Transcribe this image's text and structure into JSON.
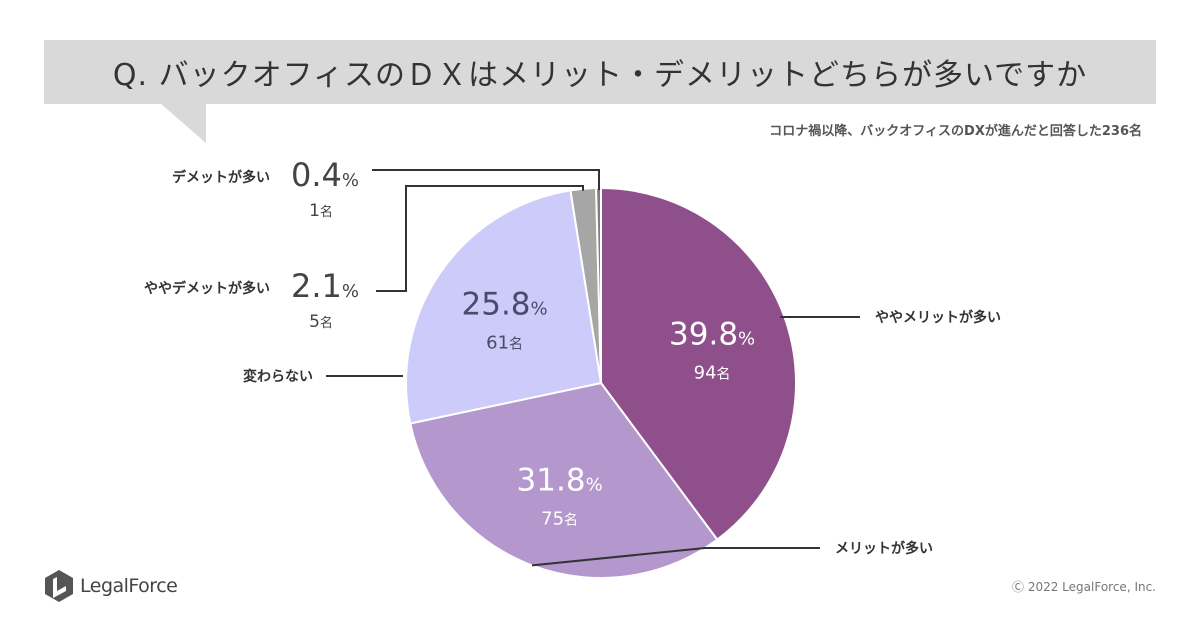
{
  "title": "Q. バックオフィスのＤＸはメリット・デメリットどちらが多いですか",
  "subtitle": "コロナ禍以降、バックオフィスのDXが進んだと回答した236名",
  "chart_data": {
    "type": "pie",
    "title": "Q. バックオフィスのＤＸはメリット・デメリットどちらが多いですか",
    "total_respondents": 236,
    "slices": [
      {
        "label": "ややメリットが多い",
        "percent": 39.8,
        "count": 94,
        "percent_text": "39.8",
        "count_text": "94",
        "color": "#8e4f8b"
      },
      {
        "label": "メリットが多い",
        "percent": 31.8,
        "count": 75,
        "percent_text": "31.8",
        "count_text": "75",
        "color": "#b497cc"
      },
      {
        "label": "変わらない",
        "percent": 25.8,
        "count": 61,
        "percent_text": "25.8",
        "count_text": "61",
        "color": "#cccbf9"
      },
      {
        "label": "ややデメットが多い",
        "percent": 2.1,
        "count": 5,
        "percent_text": "2.1",
        "count_text": "5",
        "color": "#a6a6a6"
      },
      {
        "label": "デメットが多い",
        "percent": 0.4,
        "count": 1,
        "percent_text": "0.4",
        "count_text": "1",
        "color": "#7f7f7f"
      }
    ],
    "percent_unit": "%",
    "count_unit": "名"
  },
  "logo": {
    "name": "LegalForce"
  },
  "copyright": "Ⓒ 2022 LegalForce, Inc.",
  "colors": {
    "title_bg": "#d9d9d9",
    "leader": "#333333"
  }
}
